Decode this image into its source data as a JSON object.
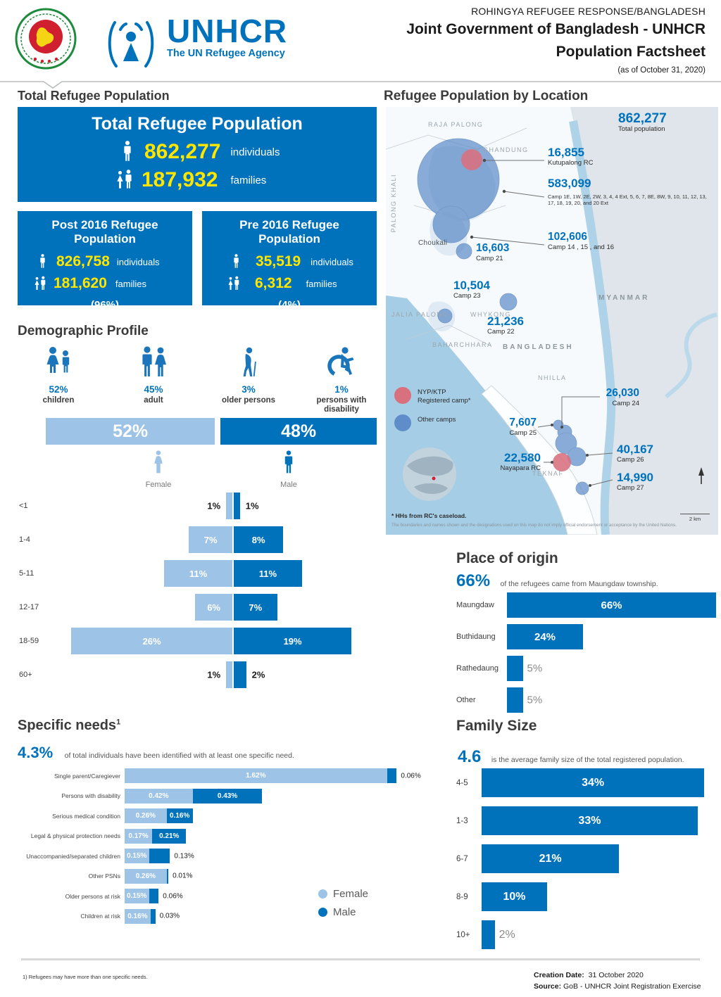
{
  "header": {
    "tagline": "ROHINGYA REFUGEE RESPONSE/BANGLADESH",
    "title_line1": "Joint Government of Bangladesh - UNHCR",
    "title_line2": "Population Factsheet",
    "as_of": "(as of October 31, 2020)",
    "unhcr_wordmark": "UNHCR",
    "unhcr_subtitle": "The UN Refugee Agency"
  },
  "colors": {
    "primary_blue": "#0072BC",
    "light_blue": "#9DC3E6",
    "yellow": "#FFE600",
    "registered_camp_red": "#D9707E",
    "other_camp_blue": "#5E8DC9"
  },
  "total_population": {
    "section_heading": "Total Refugee Population",
    "box_title": "Total Refugee Population",
    "individuals_value": "862,277",
    "individuals_label": "individuals",
    "families_value": "187,932",
    "families_label": "families"
  },
  "post_2016": {
    "title": "Post 2016 Refugee Population",
    "individuals_value": "826,758",
    "individuals_label": "individuals",
    "families_value": "181,620",
    "families_label": "families",
    "share": "(96%)"
  },
  "pre_2016": {
    "title": "Pre 2016 Refugee Population",
    "individuals_value": "35,519",
    "individuals_label": "individuals",
    "families_value": "6,312",
    "families_label": "families",
    "share": "(4%)"
  },
  "demographic": {
    "heading": "Demographic Profile",
    "groups": [
      {
        "pct": "52%",
        "label": "children",
        "icon": "children-icon"
      },
      {
        "pct": "45%",
        "label": "adult",
        "icon": "adults-icon"
      },
      {
        "pct": "3%",
        "label": "older persons",
        "icon": "older-person-icon"
      },
      {
        "pct": "1%",
        "label": "persons with disability",
        "icon": "wheelchair-icon"
      }
    ],
    "female_label": "Female",
    "male_label": "Male"
  },
  "chart_data": [
    {
      "id": "gender_split",
      "type": "bar",
      "categories": [
        "Female",
        "Male"
      ],
      "values": [
        52,
        48
      ],
      "labels": [
        "52%",
        "48%"
      ]
    },
    {
      "id": "age_pyramid",
      "type": "bar",
      "orientation": "population-pyramid",
      "categories": [
        "<1",
        "1-4",
        "5-11",
        "12-17",
        "18-59",
        "60+"
      ],
      "series": [
        {
          "name": "Female",
          "values": [
            1,
            7,
            11,
            6,
            26,
            1
          ],
          "labels": [
            "1%",
            "7%",
            "11%",
            "6%",
            "26%",
            "1%"
          ]
        },
        {
          "name": "Male",
          "values": [
            1,
            8,
            11,
            7,
            19,
            2
          ],
          "labels": [
            "1%",
            "8%",
            "11%",
            "7%",
            "19%",
            "2%"
          ]
        }
      ],
      "unit": "percent"
    },
    {
      "id": "place_of_origin",
      "type": "bar",
      "title": "Place of origin",
      "stat": "66%",
      "stat_text": "of the refugees came from Maungdaw township.",
      "categories": [
        "Maungdaw",
        "Buthidaung",
        "Rathedaung",
        "Other"
      ],
      "values": [
        66,
        24,
        5,
        5
      ],
      "labels": [
        "66%",
        "24%",
        "5%",
        "5%"
      ],
      "xlim": [
        0,
        66
      ]
    },
    {
      "id": "specific_needs",
      "type": "bar",
      "title": "Specific needs",
      "title_superscript": "1",
      "stat": "4.3%",
      "stat_text": "of total individuals have been identified with at least one specific need.",
      "categories": [
        "Single parent/Caregiever",
        "Persons with disability",
        "Serious medical condition",
        "Legal & physical protection needs",
        "Unaccompanied/separated children",
        "Other PSNs",
        "Older persons at risk",
        "Children at risk"
      ],
      "series": [
        {
          "name": "Female",
          "values": [
            1.62,
            0.42,
            0.26,
            0.17,
            0.15,
            0.26,
            0.15,
            0.16
          ],
          "labels": [
            "1.62%",
            "0.42%",
            "0.26%",
            "0.17%",
            "0.15%",
            "0.26%",
            "0.15%",
            "0.16%"
          ]
        },
        {
          "name": "Male",
          "values": [
            0.06,
            0.43,
            0.16,
            0.21,
            0.13,
            0.01,
            0.06,
            0.03
          ],
          "labels": [
            "0.06%",
            "0.43%",
            "0.16%",
            "0.21%",
            "0.13%",
            "0.01%",
            "0.06%",
            "0.03%"
          ]
        }
      ],
      "legend": [
        "Female",
        "Male"
      ],
      "legend_position": "right"
    },
    {
      "id": "family_size",
      "type": "bar",
      "title": "Family Size",
      "stat": "4.6",
      "stat_text": "is the average family size of the total registered population.",
      "categories": [
        "4-5",
        "1-3",
        "6-7",
        "8-9",
        "10+"
      ],
      "values": [
        34,
        33,
        21,
        10,
        2
      ],
      "labels": [
        "34%",
        "33%",
        "21%",
        "10%",
        "2%"
      ]
    }
  ],
  "map": {
    "heading": "Refugee Population by Location",
    "total": {
      "value": "862,277",
      "label": "Total population"
    },
    "callouts": [
      {
        "value": "16,855",
        "label": "Kutupalong RC"
      },
      {
        "value": "583,099",
        "label": "Camp 1E, 1W, 2E, 2W, 3, 4, 4 Ext, 5, 6, 7, 8E, 8W, 9, 10, 11, 12, 13, 17, 18, 19, 20, and 20 Ext"
      },
      {
        "value": "102,606",
        "label": "Camp 14 , 15 , and 16"
      },
      {
        "value": "16,603",
        "label": "Camp 21"
      },
      {
        "value": "10,504",
        "label": "Camp 23"
      },
      {
        "value": "21,236",
        "label": "Camp 22"
      },
      {
        "value": "26,030",
        "label": "Camp 24"
      },
      {
        "value": "7,607",
        "label": "Camp 25"
      },
      {
        "value": "22,580",
        "label": "Nayapara RC"
      },
      {
        "value": "40,167",
        "label": "Camp 26"
      },
      {
        "value": "14,990",
        "label": "Camp 27"
      }
    ],
    "regions": [
      "RAJA PALONG",
      "GHANDUNG",
      "PALONG KHALI",
      "Choukali",
      "JALIA PALONG",
      "WHYKONG",
      "BAHARCHHARA",
      "BANGLADESH",
      "NHILLA",
      "MYANMAR",
      "TEKNAF"
    ],
    "legend": [
      {
        "label": "NYP/KTP Registered camp*",
        "color": "#D9707E"
      },
      {
        "label": "Other camps",
        "color": "#5E8DC9"
      }
    ],
    "footnote": "* HHs from RC's caseload.",
    "disclaimer": "The boundaries and names shown and the designations used on this map do not imply official endorsement or acceptance by the United Nations.",
    "scale_label": "2 km"
  },
  "footer": {
    "note": "1) Refugees may have more than one specific needs.",
    "creation_label": "Creation Date:",
    "creation_value": "31 October 2020",
    "source_label": "Source:",
    "source_value": "GoB - UNHCR Joint Registration Exercise"
  }
}
